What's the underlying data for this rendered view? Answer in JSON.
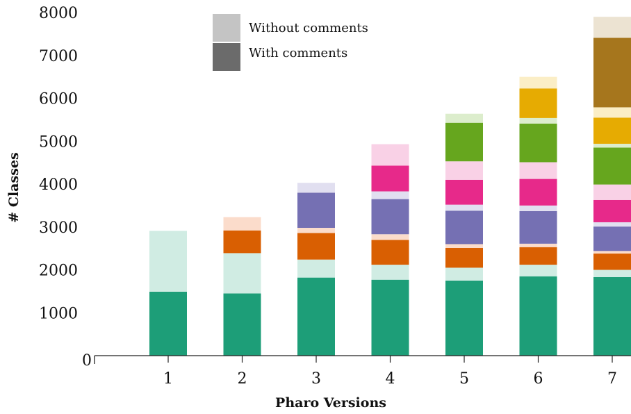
{
  "chart_data": {
    "type": "bar",
    "stacked": true,
    "xlabel": "Pharo Versions",
    "ylabel": "# Classes",
    "ylim": [
      0,
      8000
    ],
    "yticks": [
      "0",
      "1000",
      "2000",
      "3000",
      "4000",
      "5000",
      "6000",
      "7000",
      "8000"
    ],
    "categories": [
      "1",
      "2",
      "3",
      "4",
      "5",
      "6",
      "7"
    ],
    "legend": {
      "position": "top-center",
      "entries": [
        {
          "label": "Without comments",
          "color": "#c4c4c4"
        },
        {
          "label": "With comments",
          "color": "#6b6b6b"
        }
      ]
    },
    "grid": false,
    "stacks": [
      [
        {
          "value": 1490,
          "color": "#1d9e78"
        },
        {
          "value": 1420,
          "color": "#d0ece3"
        }
      ],
      [
        {
          "value": 1450,
          "color": "#1d9e78"
        },
        {
          "value": 940,
          "color": "#d0ece3"
        },
        {
          "value": 530,
          "color": "#d95f02"
        },
        {
          "value": 310,
          "color": "#fbdccb"
        }
      ],
      [
        {
          "value": 1820,
          "color": "#1d9e78"
        },
        {
          "value": 420,
          "color": "#d0ece3"
        },
        {
          "value": 620,
          "color": "#d95f02"
        },
        {
          "value": 120,
          "color": "#fbdccb"
        },
        {
          "value": 820,
          "color": "#7570b3"
        },
        {
          "value": 230,
          "color": "#e1dff0"
        }
      ],
      [
        {
          "value": 1770,
          "color": "#1d9e78"
        },
        {
          "value": 350,
          "color": "#d0ece3"
        },
        {
          "value": 580,
          "color": "#d95f02"
        },
        {
          "value": 130,
          "color": "#fbdccb"
        },
        {
          "value": 820,
          "color": "#7570b3"
        },
        {
          "value": 180,
          "color": "#e1dff0"
        },
        {
          "value": 600,
          "color": "#e7298a"
        },
        {
          "value": 500,
          "color": "#f9d1e6"
        }
      ],
      [
        {
          "value": 1750,
          "color": "#1d9e78"
        },
        {
          "value": 300,
          "color": "#d0ece3"
        },
        {
          "value": 460,
          "color": "#d95f02"
        },
        {
          "value": 90,
          "color": "#fbdccb"
        },
        {
          "value": 780,
          "color": "#7570b3"
        },
        {
          "value": 140,
          "color": "#e1dff0"
        },
        {
          "value": 580,
          "color": "#e7298a"
        },
        {
          "value": 430,
          "color": "#f9d1e6"
        },
        {
          "value": 900,
          "color": "#66a61e"
        },
        {
          "value": 210,
          "color": "#dcedcc"
        }
      ],
      [
        {
          "value": 1850,
          "color": "#1d9e78"
        },
        {
          "value": 270,
          "color": "#d0ece3"
        },
        {
          "value": 410,
          "color": "#d95f02"
        },
        {
          "value": 80,
          "color": "#fbdccb"
        },
        {
          "value": 760,
          "color": "#7570b3"
        },
        {
          "value": 130,
          "color": "#e1dff0"
        },
        {
          "value": 620,
          "color": "#e7298a"
        },
        {
          "value": 390,
          "color": "#f9d1e6"
        },
        {
          "value": 900,
          "color": "#66a61e"
        },
        {
          "value": 130,
          "color": "#dcedcc"
        },
        {
          "value": 690,
          "color": "#e6ab02"
        },
        {
          "value": 270,
          "color": "#fbeec6"
        }
      ],
      [
        {
          "value": 1830,
          "color": "#1d9e78"
        },
        {
          "value": 170,
          "color": "#d0ece3"
        },
        {
          "value": 380,
          "color": "#d95f02"
        },
        {
          "value": 60,
          "color": "#fbdccb"
        },
        {
          "value": 570,
          "color": "#7570b3"
        },
        {
          "value": 100,
          "color": "#e1dff0"
        },
        {
          "value": 520,
          "color": "#e7298a"
        },
        {
          "value": 360,
          "color": "#f9d1e6"
        },
        {
          "value": 860,
          "color": "#66a61e"
        },
        {
          "value": 90,
          "color": "#dcedcc"
        },
        {
          "value": 610,
          "color": "#e6ab02"
        },
        {
          "value": 240,
          "color": "#fbeec6"
        },
        {
          "value": 1620,
          "color": "#a6761d"
        },
        {
          "value": 490,
          "color": "#ece3d2"
        }
      ]
    ]
  }
}
